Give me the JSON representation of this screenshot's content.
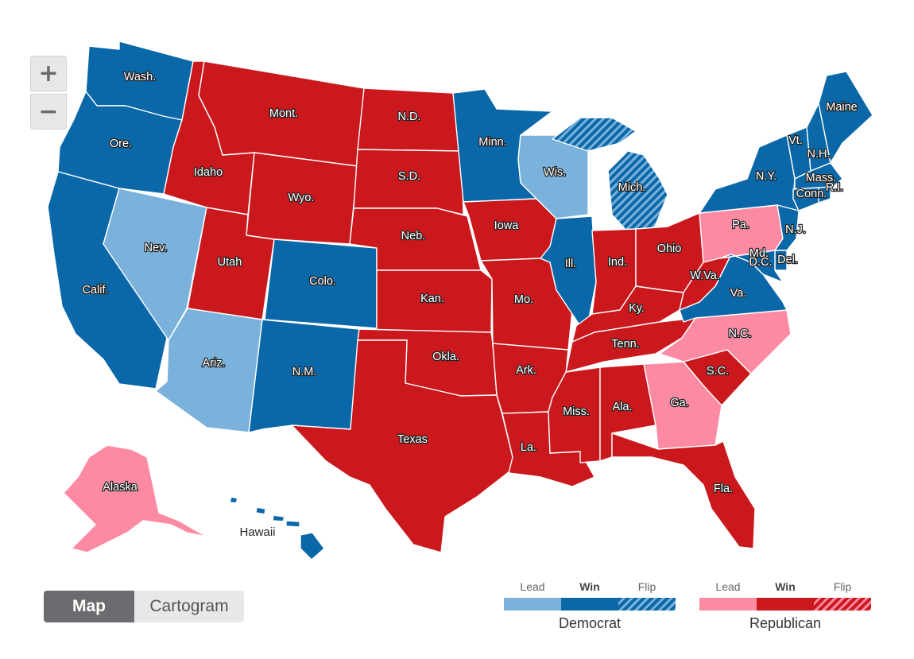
{
  "colors": {
    "dem_lead": "#7ab2db",
    "dem_win": "#0b68a8",
    "dem_flip": "#0b68a8",
    "rep_lead": "#fc8aa2",
    "rep_win": "#cb181d",
    "rep_flip": "#cb181d"
  },
  "zoom": {
    "in_label": "+",
    "out_label": "−"
  },
  "view_toggle": {
    "map_label": "Map",
    "cartogram_label": "Cartogram",
    "selected": "Map"
  },
  "legend": {
    "democrat": {
      "party": "Democrat",
      "lead": "Lead",
      "win": "Win",
      "flip": "Flip"
    },
    "republican": {
      "party": "Republican",
      "lead": "Lead",
      "win": "Win",
      "flip": "Flip"
    }
  },
  "hawaii_label": "Hawaii",
  "states": [
    {
      "id": "WA",
      "label": "Wash.",
      "status": "dem_win"
    },
    {
      "id": "OR",
      "label": "Ore.",
      "status": "dem_win"
    },
    {
      "id": "CA",
      "label": "Calif.",
      "status": "dem_win"
    },
    {
      "id": "NV",
      "label": "Nev.",
      "status": "dem_lead"
    },
    {
      "id": "ID",
      "label": "Idaho",
      "status": "rep_win"
    },
    {
      "id": "MT",
      "label": "Mont.",
      "status": "rep_win"
    },
    {
      "id": "WY",
      "label": "Wyo.",
      "status": "rep_win"
    },
    {
      "id": "UT",
      "label": "Utah",
      "status": "rep_win"
    },
    {
      "id": "AZ",
      "label": "Ariz.",
      "status": "dem_lead"
    },
    {
      "id": "CO",
      "label": "Colo.",
      "status": "dem_win"
    },
    {
      "id": "NM",
      "label": "N.M.",
      "status": "dem_win"
    },
    {
      "id": "ND",
      "label": "N.D.",
      "status": "rep_win"
    },
    {
      "id": "SD",
      "label": "S.D.",
      "status": "rep_win"
    },
    {
      "id": "NE",
      "label": "Neb.",
      "status": "rep_win"
    },
    {
      "id": "KS",
      "label": "Kan.",
      "status": "rep_win"
    },
    {
      "id": "OK",
      "label": "Okla.",
      "status": "rep_win"
    },
    {
      "id": "TX",
      "label": "Texas",
      "status": "rep_win"
    },
    {
      "id": "MN",
      "label": "Minn.",
      "status": "dem_win"
    },
    {
      "id": "IA",
      "label": "Iowa",
      "status": "rep_win"
    },
    {
      "id": "MO",
      "label": "Mo.",
      "status": "rep_win"
    },
    {
      "id": "AR",
      "label": "Ark.",
      "status": "rep_win"
    },
    {
      "id": "LA",
      "label": "La.",
      "status": "rep_win"
    },
    {
      "id": "WI",
      "label": "Wis.",
      "status": "dem_lead"
    },
    {
      "id": "IL",
      "label": "Ill.",
      "status": "dem_win"
    },
    {
      "id": "MI",
      "label": "Mich.",
      "status": "dem_flip"
    },
    {
      "id": "IN",
      "label": "Ind.",
      "status": "rep_win"
    },
    {
      "id": "OH",
      "label": "Ohio",
      "status": "rep_win"
    },
    {
      "id": "KY",
      "label": "Ky.",
      "status": "rep_win"
    },
    {
      "id": "TN",
      "label": "Tenn.",
      "status": "rep_win"
    },
    {
      "id": "MS",
      "label": "Miss.",
      "status": "rep_win"
    },
    {
      "id": "AL",
      "label": "Ala.",
      "status": "rep_win"
    },
    {
      "id": "GA",
      "label": "Ga.",
      "status": "rep_lead"
    },
    {
      "id": "FL",
      "label": "Fla.",
      "status": "rep_win"
    },
    {
      "id": "SC",
      "label": "S.C.",
      "status": "rep_win"
    },
    {
      "id": "NC",
      "label": "N.C.",
      "status": "rep_lead"
    },
    {
      "id": "VA",
      "label": "Va.",
      "status": "dem_win"
    },
    {
      "id": "WV",
      "label": "W.Va.",
      "status": "rep_win"
    },
    {
      "id": "PA",
      "label": "Pa.",
      "status": "rep_lead"
    },
    {
      "id": "NY",
      "label": "N.Y.",
      "status": "dem_win"
    },
    {
      "id": "VT",
      "label": "Vt.",
      "status": "dem_win"
    },
    {
      "id": "NH",
      "label": "N.H.",
      "status": "dem_win"
    },
    {
      "id": "ME",
      "label": "Maine",
      "status": "dem_win"
    },
    {
      "id": "MA",
      "label": "Mass.",
      "status": "dem_win"
    },
    {
      "id": "RI",
      "label": "R.I.",
      "status": "dem_win"
    },
    {
      "id": "CT",
      "label": "Conn.",
      "status": "dem_win"
    },
    {
      "id": "NJ",
      "label": "N.J.",
      "status": "dem_win"
    },
    {
      "id": "DE",
      "label": "Del.",
      "status": "dem_win"
    },
    {
      "id": "MD",
      "label": "Md.",
      "status": "dem_win"
    },
    {
      "id": "DC",
      "label": "D.C.",
      "status": "dem_win"
    },
    {
      "id": "AK",
      "label": "Alaska",
      "status": "rep_lead"
    },
    {
      "id": "HI",
      "label": "",
      "status": "dem_win"
    }
  ]
}
